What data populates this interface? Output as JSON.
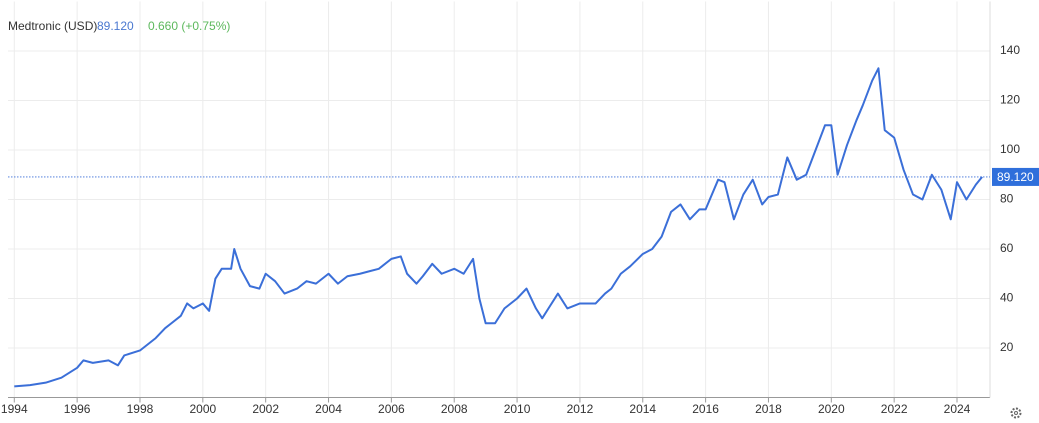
{
  "chart_data": {
    "type": "line",
    "title": "Medtronic (USD)",
    "price": {
      "value": 89.12,
      "label": "89.120"
    },
    "change": "0.660 (+0.75%)",
    "series": [
      {
        "name": "Medtronic",
        "color": "#3b6fd8",
        "x": [
          1994.0,
          1994.5,
          1995.0,
          1995.5,
          1996.0,
          1996.2,
          1996.5,
          1997.0,
          1997.3,
          1997.5,
          1998.0,
          1998.5,
          1998.8,
          1999.0,
          1999.3,
          1999.5,
          1999.7,
          2000.0,
          2000.2,
          2000.4,
          2000.6,
          2000.9,
          2001.0,
          2001.2,
          2001.5,
          2001.8,
          2002.0,
          2002.3,
          2002.6,
          2003.0,
          2003.3,
          2003.6,
          2004.0,
          2004.3,
          2004.6,
          2005.0,
          2005.3,
          2005.6,
          2006.0,
          2006.3,
          2006.5,
          2006.8,
          2007.0,
          2007.3,
          2007.6,
          2008.0,
          2008.3,
          2008.6,
          2008.8,
          2009.0,
          2009.3,
          2009.6,
          2010.0,
          2010.3,
          2010.6,
          2010.8,
          2011.0,
          2011.3,
          2011.6,
          2012.0,
          2012.5,
          2012.8,
          2013.0,
          2013.3,
          2013.6,
          2014.0,
          2014.3,
          2014.6,
          2014.9,
          2015.2,
          2015.5,
          2015.8,
          2016.0,
          2016.4,
          2016.6,
          2016.9,
          2017.2,
          2017.5,
          2017.8,
          2018.0,
          2018.3,
          2018.6,
          2018.9,
          2019.2,
          2019.5,
          2019.8,
          2020.0,
          2020.2,
          2020.5,
          2020.8,
          2021.0,
          2021.3,
          2021.5,
          2021.7,
          2022.0,
          2022.3,
          2022.6,
          2022.9,
          2023.2,
          2023.5,
          2023.8,
          2024.0,
          2024.3,
          2024.6,
          2024.8
        ],
        "values": [
          4.5,
          5,
          6,
          8,
          12,
          15,
          14,
          15,
          13,
          17,
          19,
          24,
          28,
          30,
          33,
          38,
          36,
          38,
          35,
          48,
          52,
          52,
          60,
          52,
          45,
          44,
          50,
          47,
          42,
          44,
          47,
          46,
          50,
          46,
          49,
          50,
          51,
          52,
          56,
          57,
          50,
          46,
          49,
          54,
          50,
          52,
          50,
          56,
          40,
          30,
          30,
          36,
          40,
          44,
          36,
          32,
          36,
          42,
          36,
          38,
          38,
          42,
          44,
          50,
          53,
          58,
          60,
          65,
          75,
          78,
          72,
          76,
          76,
          88,
          87,
          72,
          82,
          88,
          78,
          81,
          82,
          97,
          88,
          90,
          100,
          110,
          110,
          90,
          102,
          112,
          118,
          128,
          133,
          108,
          105,
          92,
          82,
          80,
          90,
          84,
          72,
          87,
          80,
          86,
          89.12
        ]
      }
    ],
    "xlim": [
      1993.8,
      2025.05
    ],
    "xticks": [
      1994,
      1996,
      1998,
      2000,
      2002,
      2004,
      2006,
      2008,
      2010,
      2012,
      2014,
      2016,
      2018,
      2020,
      2022,
      2024
    ],
    "ylim": [
      0,
      160
    ],
    "yticks": [
      20,
      40,
      60,
      80,
      100,
      120,
      140
    ],
    "grid": true
  }
}
